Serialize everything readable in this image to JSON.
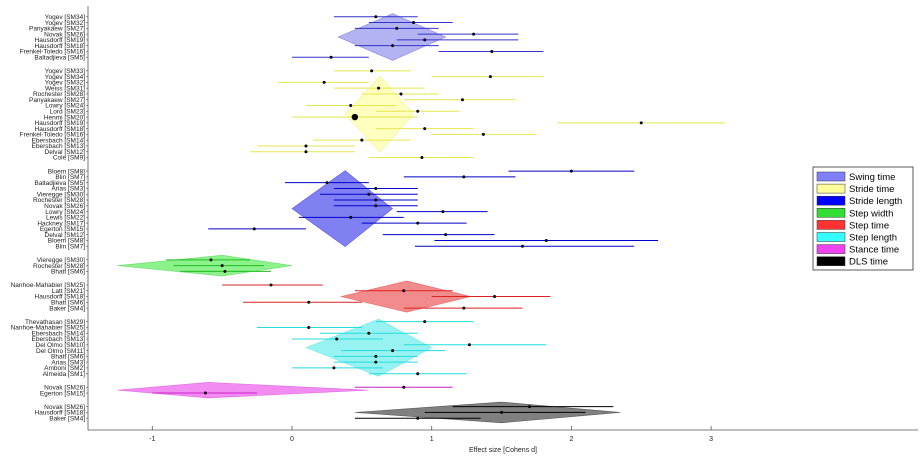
{
  "chart_data": {
    "type": "forest",
    "xlabel": "Effect size [Cohens d]",
    "xlim": [
      -1.4,
      4.5
    ],
    "xticks": [
      -1,
      0,
      1,
      2,
      3
    ],
    "legend": {
      "position": "right",
      "entries": [
        {
          "name": "Swing time",
          "color": "#8080ff"
        },
        {
          "name": "Stride time",
          "color": "#ffff99"
        },
        {
          "name": "Stride length",
          "color": "#0000ff"
        },
        {
          "name": "Step width",
          "color": "#33dd33"
        },
        {
          "name": "Step time",
          "color": "#ff3333"
        },
        {
          "name": "Step length",
          "color": "#33ffff"
        },
        {
          "name": "Stance time",
          "color": "#ee44ee"
        },
        {
          "name": "DLS time",
          "color": "#000000"
        }
      ]
    },
    "groups": [
      {
        "name": "Swing time",
        "line_color": "#3333cc",
        "fill": "#9999ee",
        "diamond": {
          "lo": 0.33,
          "est": 0.72,
          "hi": 1.1
        },
        "studies": [
          {
            "label": "Yogev [SM34]",
            "est": 0.6,
            "lo": 0.3,
            "hi": 0.9
          },
          {
            "label": "Yogev [SM32]",
            "est": 0.87,
            "lo": 0.55,
            "hi": 1.15
          },
          {
            "label": "Panyakaew [SM27]",
            "est": 0.75,
            "lo": 0.45,
            "hi": 1.05
          },
          {
            "label": "Novak [SM26]",
            "est": 1.3,
            "lo": 0.9,
            "hi": 1.62
          },
          {
            "label": "Hausdorff [SM19]",
            "est": 0.95,
            "lo": 0.75,
            "hi": 1.62
          },
          {
            "label": "Hausdorff [SM18]",
            "est": 0.72,
            "lo": 0.45,
            "hi": 1.05
          },
          {
            "label": "Frenkel-Toledo [SM16]",
            "est": 1.43,
            "lo": 1.05,
            "hi": 1.8
          },
          {
            "label": "Baltadjieva [SM5]",
            "est": 0.28,
            "lo": 0.0,
            "hi": 0.55
          }
        ]
      },
      {
        "name": "Stride time",
        "line_color": "#e6e64d",
        "fill": "#ffffaa",
        "diamond": {
          "lo": 0.38,
          "est": 0.63,
          "hi": 0.87
        },
        "studies": [
          {
            "label": "Yogev [SM33]",
            "est": 0.57,
            "lo": 0.3,
            "hi": 0.85
          },
          {
            "label": "Yogev [SM34]",
            "est": 1.42,
            "lo": 1.0,
            "hi": 1.8
          },
          {
            "label": "Yogev [SM32]",
            "est": 0.23,
            "lo": -0.1,
            "hi": 0.55
          },
          {
            "label": "Weiss [SM31]",
            "est": 0.62,
            "lo": 0.3,
            "hi": 0.95
          },
          {
            "label": "Rochester [SM28]",
            "est": 0.78,
            "lo": 0.5,
            "hi": 1.05
          },
          {
            "label": "Panyakaew [SM27]",
            "est": 1.22,
            "lo": 0.8,
            "hi": 1.6
          },
          {
            "label": "Lowry [SM24]",
            "est": 0.42,
            "lo": 0.1,
            "hi": 0.75
          },
          {
            "label": "Lord [SM23]",
            "est": 0.9,
            "lo": 0.6,
            "hi": 1.2
          },
          {
            "label": "Henmi [SM20]",
            "est": 0.45,
            "lo": 0.0,
            "hi": 0.9,
            "big": true
          },
          {
            "label": "Hausdorff [SM19]",
            "est": 2.5,
            "lo": 1.9,
            "hi": 3.1
          },
          {
            "label": "Hausdorff [SM18]",
            "est": 0.95,
            "lo": 0.6,
            "hi": 1.3
          },
          {
            "label": "Frenkel-Toledo [SM16]",
            "est": 1.37,
            "lo": 1.0,
            "hi": 1.75
          },
          {
            "label": "Ebersbach [SM14]",
            "est": 0.5,
            "lo": 0.15,
            "hi": 0.85
          },
          {
            "label": "Ebersbach [SM13]",
            "est": 0.1,
            "lo": -0.25,
            "hi": 0.45
          },
          {
            "label": "Delval [SM12]",
            "est": 0.1,
            "lo": -0.3,
            "hi": 0.45
          },
          {
            "label": "Cole [SM9]",
            "est": 0.93,
            "lo": 0.55,
            "hi": 1.3
          }
        ]
      },
      {
        "name": "Stride length",
        "line_color": "#0000cc",
        "fill": "#5555ee",
        "diamond": {
          "lo": 0.0,
          "est": 0.38,
          "hi": 0.72
        },
        "studies": [
          {
            "label": "Bloem [SM8]",
            "est": 2.0,
            "lo": 1.55,
            "hi": 2.45
          },
          {
            "label": "Blin [SM7]",
            "est": 1.23,
            "lo": 0.8,
            "hi": 1.6
          },
          {
            "label": "Baltadjieva [SM5]",
            "est": 0.25,
            "lo": -0.05,
            "hi": 0.55
          },
          {
            "label": "Arias [SM3]",
            "est": 0.6,
            "lo": 0.3,
            "hi": 0.9
          },
          {
            "label": "Vieregge [SM30]",
            "est": 0.55,
            "lo": 0.2,
            "hi": 0.9
          },
          {
            "label": "Rochester [SM28]",
            "est": 0.6,
            "lo": 0.3,
            "hi": 0.9
          },
          {
            "label": "Novak [SM26]",
            "est": 0.6,
            "lo": 0.3,
            "hi": 0.9
          },
          {
            "label": "Lowry [SM24]",
            "est": 1.08,
            "lo": 0.75,
            "hi": 1.4
          },
          {
            "label": "Lewis [SM22]",
            "est": 0.42,
            "lo": 0.05,
            "hi": 0.8
          },
          {
            "label": "Hackney [SM17]",
            "est": 0.9,
            "lo": 0.5,
            "hi": 1.25
          },
          {
            "label": "Egerton [SM15]",
            "est": -0.27,
            "lo": -0.6,
            "hi": 0.1
          },
          {
            "label": "Delval [SM12]",
            "est": 1.1,
            "lo": 0.65,
            "hi": 1.45
          },
          {
            "label": "Bloem [SM8]",
            "est": 1.82,
            "lo": 1.02,
            "hi": 2.62
          },
          {
            "label": "Blin [SM7]",
            "est": 1.65,
            "lo": 0.88,
            "hi": 2.45
          }
        ]
      },
      {
        "name": "Step width",
        "line_color": "#22bb22",
        "fill": "#66ee66",
        "diamond": {
          "lo": -1.25,
          "est": -0.5,
          "hi": 0.0
        },
        "studies": [
          {
            "label": "Vieregge [SM30]",
            "est": -0.58,
            "lo": -0.9,
            "hi": -0.3
          },
          {
            "label": "Rochester [SM28]",
            "est": -0.5,
            "lo": -0.85,
            "hi": -0.2
          },
          {
            "label": "Bhatt [SM6]",
            "est": -0.48,
            "lo": -0.8,
            "hi": -0.15
          }
        ]
      },
      {
        "name": "Step time",
        "line_color": "#dd2222",
        "fill": "#ee6666",
        "diamond": {
          "lo": 0.35,
          "est": 0.82,
          "hi": 1.28
        },
        "studies": [
          {
            "label": "Nanhoe-Mahabier [SM25]",
            "est": -0.15,
            "lo": -0.5,
            "hi": 0.22
          },
          {
            "label": "Latt [SM21]",
            "est": 0.8,
            "lo": 0.45,
            "hi": 1.15
          },
          {
            "label": "Hausdorff [SM18]",
            "est": 1.45,
            "lo": 1.0,
            "hi": 1.85
          },
          {
            "label": "Bhatt [SM6]",
            "est": 0.12,
            "lo": -0.35,
            "hi": 0.5
          },
          {
            "label": "Baker [SM4]",
            "est": 1.23,
            "lo": 0.8,
            "hi": 1.65
          }
        ]
      },
      {
        "name": "Step length",
        "line_color": "#22dddd",
        "fill": "#77eeee",
        "diamond": {
          "lo": 0.1,
          "est": 0.62,
          "hi": 1.0
        },
        "studies": [
          {
            "label": "Thevathasan [SM29]",
            "est": 0.95,
            "lo": 0.6,
            "hi": 1.3
          },
          {
            "label": "Nanhoe-Mahabier [SM25]",
            "est": 0.12,
            "lo": -0.25,
            "hi": 0.5
          },
          {
            "label": "Ebersbach [SM14]",
            "est": 0.55,
            "lo": 0.2,
            "hi": 0.9
          },
          {
            "label": "Ebersbach [SM13]",
            "est": 0.32,
            "lo": 0.0,
            "hi": 0.65
          },
          {
            "label": "Del Olmo [SM10]",
            "est": 1.27,
            "lo": 0.8,
            "hi": 1.82
          },
          {
            "label": "Del Olmo [SM11]",
            "est": 0.72,
            "lo": 0.35,
            "hi": 1.1
          },
          {
            "label": "Bhatt [SM6]",
            "est": 0.6,
            "lo": 0.3,
            "hi": 0.9
          },
          {
            "label": "Arias [SM3]",
            "est": 0.6,
            "lo": 0.3,
            "hi": 0.9
          },
          {
            "label": "Amboni [SM2]",
            "est": 0.3,
            "lo": 0.0,
            "hi": 0.65
          },
          {
            "label": "Almeida [SM1]",
            "est": 0.9,
            "lo": 0.55,
            "hi": 1.25
          }
        ]
      },
      {
        "name": "Stance time",
        "line_color": "#cc22cc",
        "fill": "#ee66ee",
        "diamond": {
          "lo": -1.25,
          "est": -0.6,
          "hi": 0.55
        },
        "studies": [
          {
            "label": "Novak [SM26]",
            "est": 0.8,
            "lo": 0.45,
            "hi": 1.15
          },
          {
            "label": "Egerton [SM15]",
            "est": -0.62,
            "lo": -1.0,
            "hi": -0.25
          }
        ]
      },
      {
        "name": "DLS time",
        "line_color": "#000000",
        "fill": "#555555",
        "diamond": {
          "lo": 0.45,
          "est": 1.5,
          "hi": 2.35
        },
        "studies": [
          {
            "label": "Novak [SM26]",
            "est": 1.7,
            "lo": 1.15,
            "hi": 2.3
          },
          {
            "label": "Hausdorff [SM18]",
            "est": 1.5,
            "lo": 0.95,
            "hi": 2.1
          },
          {
            "label": "Baker [SM4]",
            "est": 0.9,
            "lo": 0.45,
            "hi": 1.35
          }
        ]
      }
    ]
  }
}
